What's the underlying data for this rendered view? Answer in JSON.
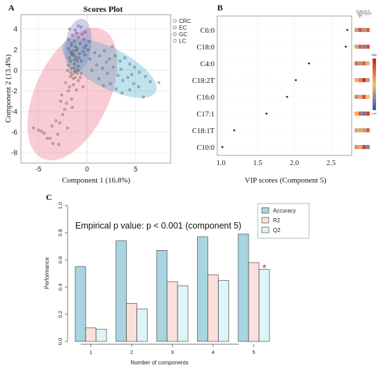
{
  "panel_letters": [
    "A",
    "B",
    "C"
  ],
  "chart_data": [
    {
      "type": "scatter",
      "title": "Scores Plot",
      "xlabel": "Component 1 (16.8%)",
      "ylabel": "Component 2 (13.4%)",
      "xlim": [
        -6.8,
        8.6
      ],
      "ylim": [
        -9,
        5.4
      ],
      "x_ticks": [
        -5,
        0,
        5
      ],
      "y_ticks": [
        4,
        2,
        0,
        -2,
        -4,
        -6,
        -8
      ],
      "legend": [
        "CRC",
        "EC",
        "GC",
        "LC"
      ],
      "legend_position": "right",
      "series": [
        {
          "name": "CRC",
          "color": "#e8607a",
          "ellipse": {
            "cx": -1.5,
            "cy": -2.3,
            "rx": 7.1,
            "ry": 3.7,
            "angle_deg": 65
          },
          "points": [
            [
              -5.5,
              -5.6
            ],
            [
              -5.0,
              -5.8
            ],
            [
              -4.7,
              -5.9
            ],
            [
              -4.4,
              -6.1
            ],
            [
              -4.1,
              -6.6
            ],
            [
              -3.8,
              -6.6
            ],
            [
              -3.5,
              -7.1
            ],
            [
              -3.0,
              -6.2
            ],
            [
              -2.8,
              -5.1
            ],
            [
              -2.5,
              -4.3
            ],
            [
              -2.3,
              -3.8
            ],
            [
              -2.1,
              -3.2
            ],
            [
              -2.6,
              -2.4
            ],
            [
              -1.9,
              -2.0
            ],
            [
              -1.6,
              -2.8
            ],
            [
              -1.4,
              -1.4
            ],
            [
              -1.1,
              -1.9
            ],
            [
              -0.9,
              -1.0
            ],
            [
              -2.2,
              -1.2
            ],
            [
              -1.7,
              -0.6
            ],
            [
              -1.3,
              -0.2
            ],
            [
              -0.7,
              -0.7
            ],
            [
              -0.4,
              -1.6
            ],
            [
              -2.9,
              -7.2
            ],
            [
              -1.5,
              -3.6
            ],
            [
              -1.2,
              -0.7
            ],
            [
              -0.6,
              -0.3
            ],
            [
              -1.8,
              -1.6
            ],
            [
              -3.2,
              -4.9
            ],
            [
              -2.0,
              -5.6
            ],
            [
              -2.7,
              -3.0
            ],
            [
              -3.6,
              -5.4
            ]
          ]
        },
        {
          "name": "EC",
          "color": "#5a9e3a",
          "ellipse": null,
          "points": [
            [
              -1.5,
              1.5
            ],
            [
              -1.1,
              1.2
            ],
            [
              -1.7,
              0.9
            ],
            [
              -1.3,
              0.6
            ],
            [
              -1.6,
              0.2
            ],
            [
              -1.2,
              -0.1
            ],
            [
              -0.9,
              0.4
            ],
            [
              -1.8,
              1.2
            ],
            [
              -1.4,
              1.9
            ],
            [
              -1.0,
              0.9
            ],
            [
              -1.5,
              -0.4
            ],
            [
              -1.9,
              0.5
            ],
            [
              -0.8,
              1.6
            ],
            [
              -1.2,
              2.3
            ],
            [
              -1.6,
              2.6
            ],
            [
              -1.0,
              -0.3
            ],
            [
              -1.4,
              -0.8
            ],
            [
              -1.7,
              -0.2
            ],
            [
              -1.3,
              1.4
            ],
            [
              -2.0,
              0.0
            ],
            [
              -1.1,
              1.9
            ],
            [
              -0.9,
              0.0
            ],
            [
              -1.6,
              1.6
            ],
            [
              -1.3,
              0.2
            ]
          ]
        },
        {
          "name": "GC",
          "color": "#6e6ec8",
          "ellipse": {
            "cx": -0.9,
            "cy": 2.4,
            "rx": 2.7,
            "ry": 1.3,
            "angle_deg": 82
          },
          "points": [
            [
              -1.8,
              4.0
            ],
            [
              -1.2,
              3.9
            ],
            [
              -0.6,
              4.2
            ],
            [
              -0.2,
              3.7
            ],
            [
              -1.5,
              3.4
            ],
            [
              -0.9,
              3.2
            ],
            [
              -0.3,
              3.0
            ],
            [
              -1.9,
              3.0
            ],
            [
              -1.3,
              2.8
            ],
            [
              -0.7,
              2.6
            ],
            [
              -0.1,
              2.4
            ],
            [
              -1.6,
              2.4
            ],
            [
              -1.0,
              2.1
            ],
            [
              -0.4,
              1.8
            ],
            [
              -1.4,
              1.6
            ],
            [
              -0.8,
              1.2
            ],
            [
              -0.2,
              1.5
            ],
            [
              0.2,
              2.8
            ],
            [
              -1.7,
              1.8
            ],
            [
              -0.5,
              3.5
            ],
            [
              -1.1,
              3.6
            ],
            [
              0.1,
              2.0
            ],
            [
              -1.9,
              2.1
            ],
            [
              -0.6,
              0.9
            ],
            [
              -1.3,
              1.0
            ],
            [
              -0.9,
              4.3
            ],
            [
              -0.3,
              2.2
            ]
          ]
        },
        {
          "name": "LC",
          "color": "#3aa6c8",
          "ellipse": {
            "cx": 2.3,
            "cy": 0.2,
            "rx": 5.2,
            "ry": 2.0,
            "angle_deg": -27
          },
          "points": [
            [
              0.8,
              1.7
            ],
            [
              1.3,
              1.4
            ],
            [
              1.8,
              1.9
            ],
            [
              2.3,
              1.1
            ],
            [
              2.9,
              1.4
            ],
            [
              3.4,
              0.9
            ],
            [
              3.9,
              1.2
            ],
            [
              4.4,
              0.6
            ],
            [
              4.9,
              0.3
            ],
            [
              5.4,
              -0.2
            ],
            [
              6.0,
              -0.6
            ],
            [
              6.5,
              -1.1
            ],
            [
              7.4,
              -1.2
            ],
            [
              1.0,
              0.5
            ],
            [
              1.6,
              0.2
            ],
            [
              2.1,
              -0.3
            ],
            [
              2.7,
              0.3
            ],
            [
              3.2,
              -0.5
            ],
            [
              3.7,
              -1.0
            ],
            [
              4.2,
              -0.7
            ],
            [
              4.8,
              -1.3
            ],
            [
              5.3,
              -1.6
            ],
            [
              5.8,
              -2.6
            ],
            [
              2.4,
              -1.3
            ],
            [
              3.0,
              -1.8
            ],
            [
              3.6,
              -2.2
            ],
            [
              4.4,
              -1.9
            ],
            [
              1.2,
              -0.8
            ],
            [
              0.5,
              0.0
            ],
            [
              2.0,
              0.8
            ],
            [
              3.5,
              0.1
            ],
            [
              4.6,
              -0.4
            ],
            [
              0.3,
              1.1
            ],
            [
              1.7,
              -1.5
            ],
            [
              2.6,
              2.3
            ]
          ]
        }
      ]
    },
    {
      "type": "scatter",
      "xlabel": "VIP scores (Component 5)",
      "ylabel": "",
      "xlim": [
        0.95,
        2.78
      ],
      "x_ticks": [
        "1.0",
        "1.5",
        "2.0",
        "2.5"
      ],
      "categories": [
        "C6:0",
        "C18:0",
        "C4:0",
        "C18:2T",
        "C16:0",
        "C17:1",
        "C18:1T",
        "C10:0"
      ],
      "values": [
        2.72,
        2.7,
        2.2,
        2.02,
        1.9,
        1.62,
        1.18,
        1.02
      ],
      "heatmap_columns": [
        "CRC",
        "EC",
        "GC",
        "LC"
      ],
      "heatmap_legend": [
        "High",
        "Low"
      ],
      "heatmap_scale": {
        "High": "#d7191c",
        "Mid": "#f4c06d",
        "Low": "#2c56b5"
      },
      "heatmap_rows": [
        [
          0.35,
          0.85,
          0.3,
          0.8
        ],
        [
          0.4,
          0.8,
          0.2,
          0.85
        ],
        [
          0.75,
          0.3,
          0.8,
          0.45
        ],
        [
          0.45,
          0.7,
          0.95,
          0.35
        ],
        [
          0.3,
          0.6,
          0.85,
          0.5
        ],
        [
          0.55,
          0.8,
          0.15,
          0.9
        ],
        [
          0.4,
          0.6,
          0.35,
          0.8
        ],
        [
          0.65,
          0.4,
          0.9,
          0.2
        ]
      ]
    },
    {
      "type": "bar",
      "annotation": "Empirical p value: p < 0.001 (component 5)",
      "xlabel": "Number of components",
      "ylabel": "Performance",
      "categories": [
        "1",
        "2",
        "3",
        "4",
        "5"
      ],
      "ylim": [
        0,
        1.0
      ],
      "y_ticks": [
        "0.0",
        "0.2",
        "0.4",
        "0.6",
        "0.8",
        "1.0"
      ],
      "legend_position": "top-right",
      "marker": {
        "symbol": "*",
        "category": "5",
        "series": "Q2",
        "color": "#d32f2f"
      },
      "series": [
        {
          "name": "Accuracy",
          "color": "#a9d4e2",
          "values": [
            0.55,
            0.74,
            0.67,
            0.77,
            0.79
          ]
        },
        {
          "name": "R2",
          "color": "#fbe0dc",
          "values": [
            0.1,
            0.28,
            0.44,
            0.49,
            0.58
          ]
        },
        {
          "name": "Q2",
          "color": "#def5f8",
          "values": [
            0.09,
            0.24,
            0.41,
            0.45,
            0.53
          ]
        }
      ]
    }
  ]
}
